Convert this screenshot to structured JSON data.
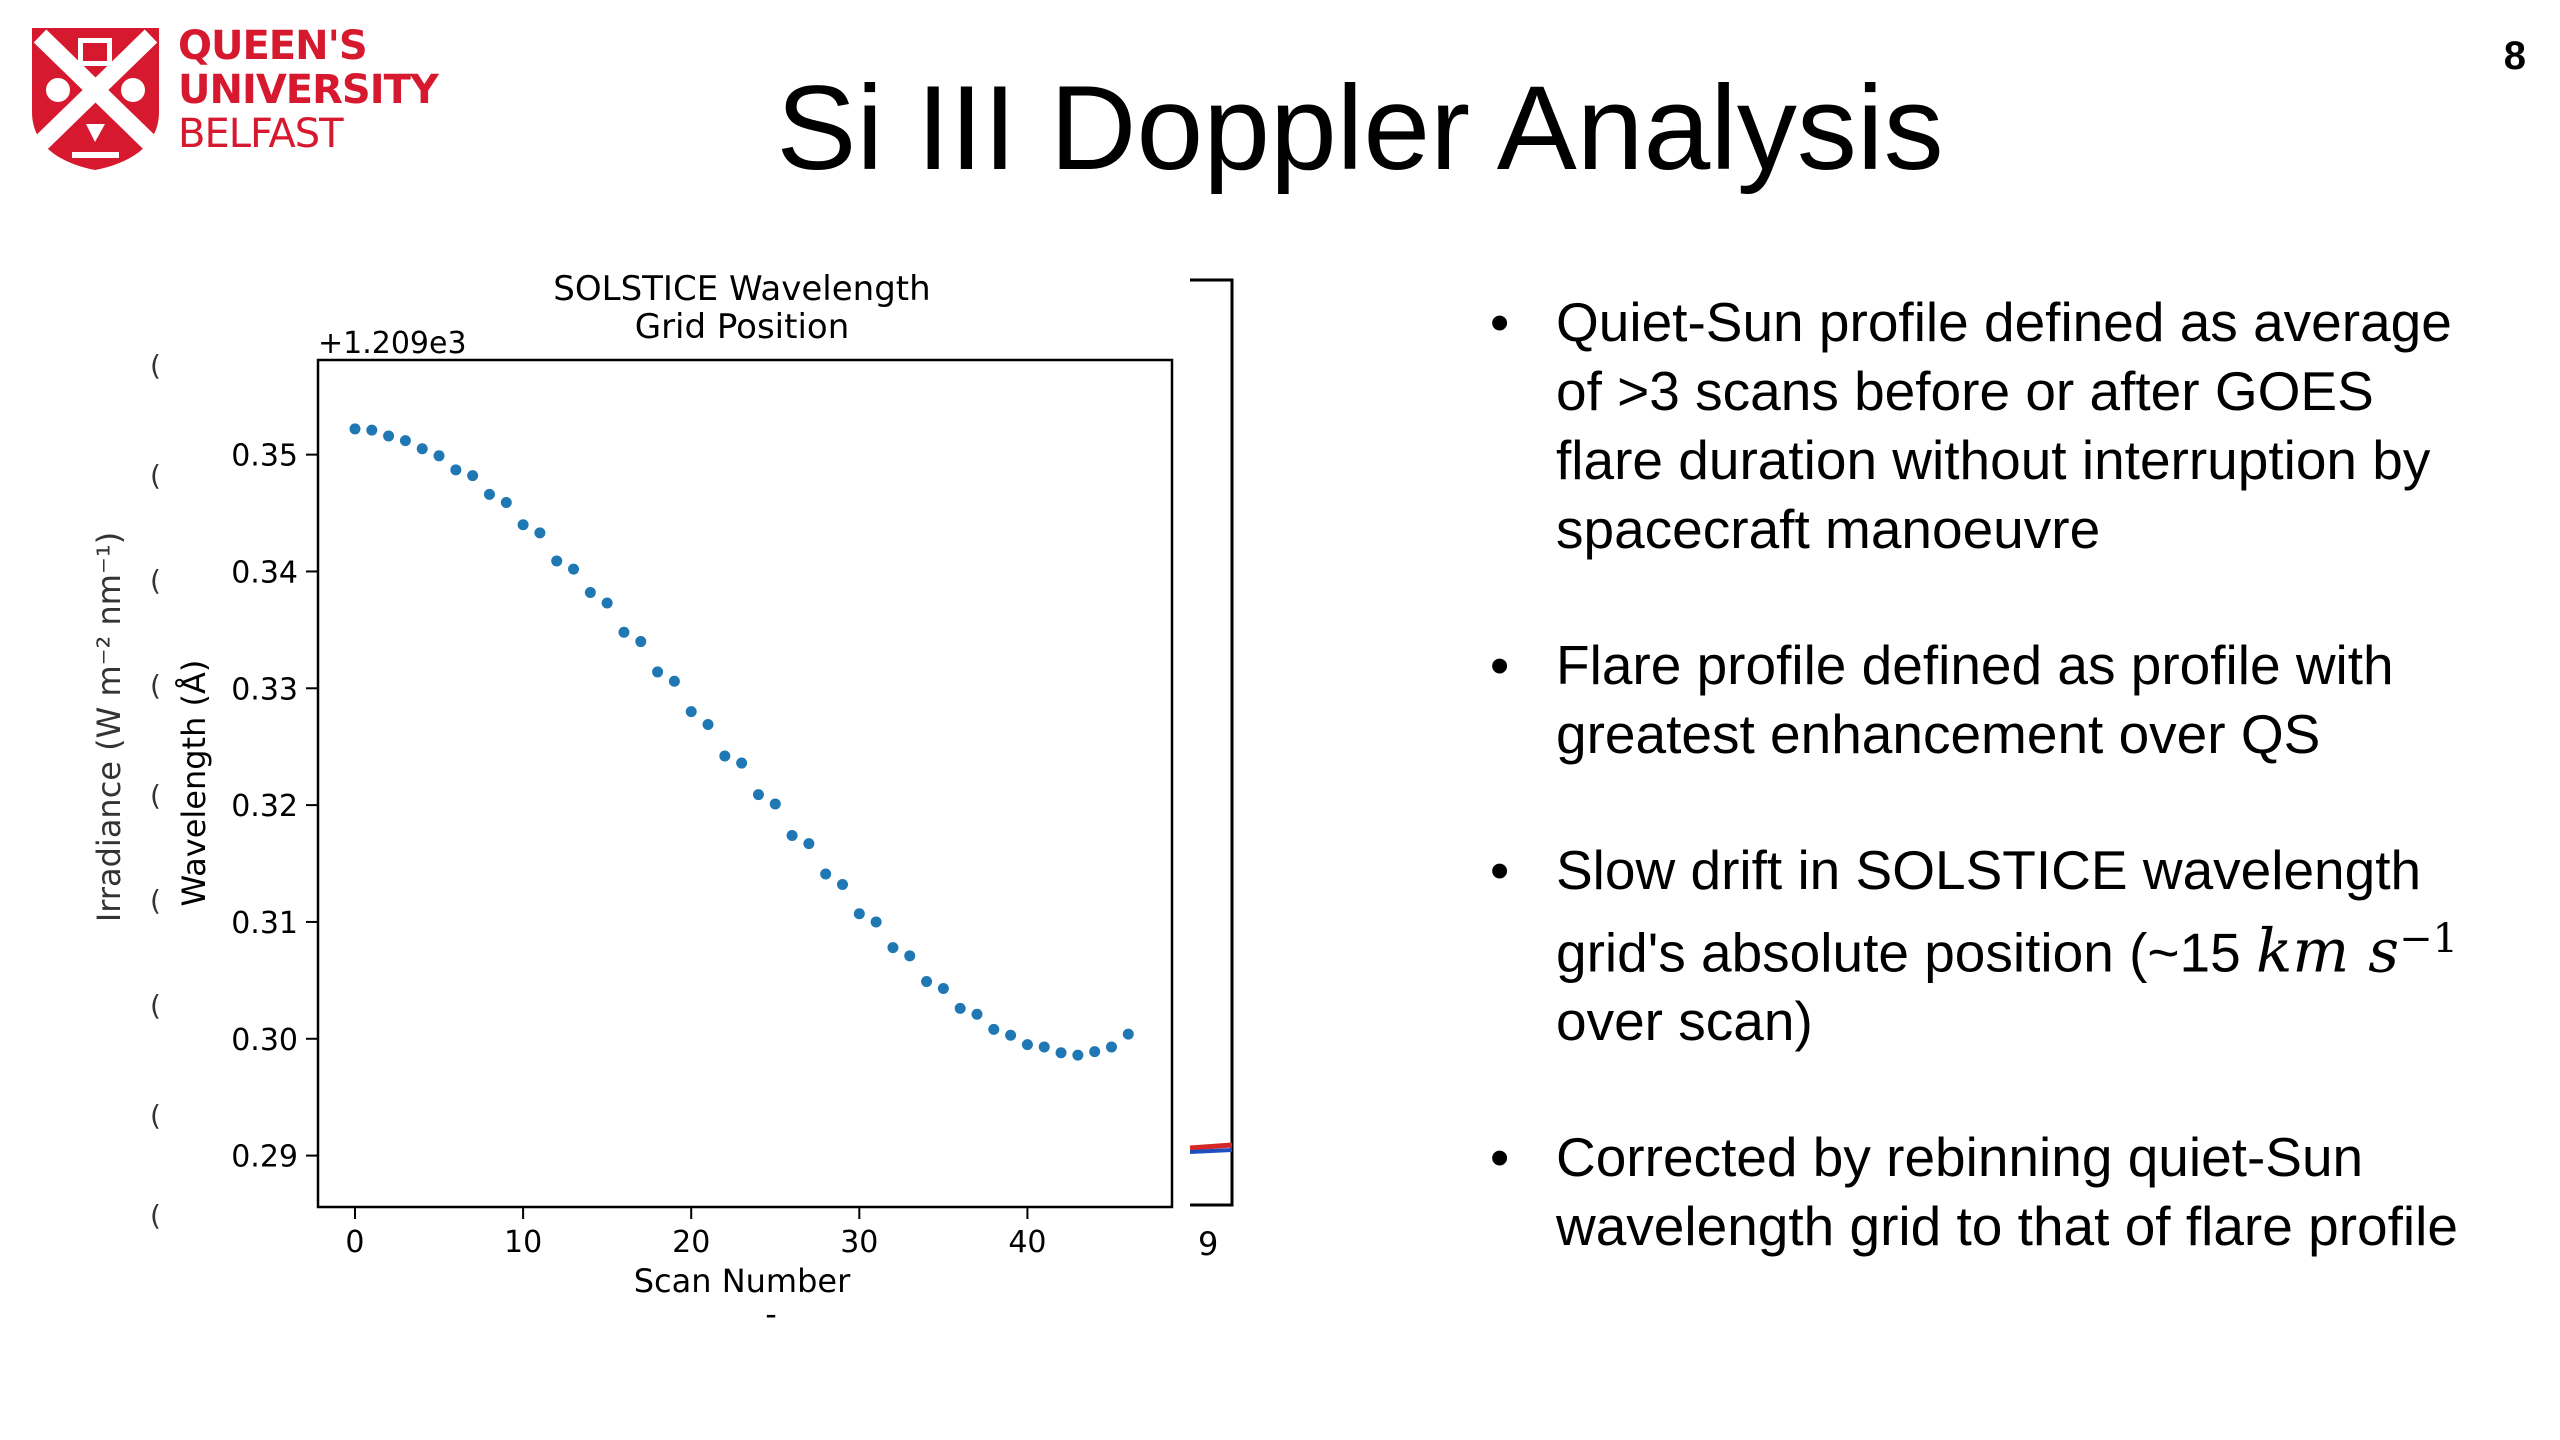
{
  "header": {
    "logo_lines": [
      "QUEEN'S",
      "UNIVERSITY",
      "BELFAST"
    ],
    "slide_number": "8",
    "title": "Si III Doppler Analysis",
    "brand_color": "#d7192f"
  },
  "behind_plot": {
    "ylabel": "Irradiance (W m⁻² nm⁻¹)",
    "x_tick_fragment": "9",
    "xlabel_fragment": "-",
    "line_colors": [
      "#d62728",
      "#1f4fbf"
    ]
  },
  "chart_data": {
    "type": "scatter",
    "title": "SOLSTICE Wavelength\nGrid Position",
    "title_lines": [
      "SOLSTICE Wavelength",
      "Grid Position"
    ],
    "offset_label": "+1.209e3",
    "xlabel": "Scan Number",
    "ylabel": "Wavelength (Å)",
    "xlim": [
      -2.2,
      48.6
    ],
    "ylim": [
      0.2856,
      0.3581
    ],
    "x_ticks": [
      0,
      10,
      20,
      30,
      40
    ],
    "x_tick_labels": [
      "0",
      "10",
      "20",
      "30",
      "40"
    ],
    "y_ticks": [
      0.29,
      0.3,
      0.31,
      0.32,
      0.33,
      0.34,
      0.35
    ],
    "y_tick_labels": [
      "0.29",
      "0.30",
      "0.31",
      "0.32",
      "0.33",
      "0.34",
      "0.35"
    ],
    "marker_color": "#1f77b4",
    "grid": false,
    "series": [
      {
        "x": [
          0,
          1,
          2,
          3,
          4,
          5,
          6,
          7,
          8,
          9,
          10,
          11,
          12,
          13,
          14,
          15,
          16,
          17,
          18,
          19,
          20,
          21,
          22,
          23,
          24,
          25,
          26,
          27,
          28,
          29,
          30,
          31,
          32,
          33,
          34,
          35,
          36,
          37,
          38,
          39,
          40,
          41,
          42,
          43,
          44,
          45,
          46
        ],
        "values": [
          0.3522,
          0.3521,
          0.3516,
          0.3512,
          0.3505,
          0.3499,
          0.3487,
          0.3482,
          0.3466,
          0.3459,
          0.344,
          0.3433,
          0.3409,
          0.3402,
          0.3382,
          0.3373,
          0.3348,
          0.334,
          0.3314,
          0.3306,
          0.328,
          0.3269,
          0.3242,
          0.3236,
          0.3209,
          0.3201,
          0.3174,
          0.3167,
          0.3141,
          0.3132,
          0.3107,
          0.31,
          0.3078,
          0.3071,
          0.3049,
          0.3043,
          0.3026,
          0.3021,
          0.3008,
          0.3003,
          0.2995,
          0.2993,
          0.2988,
          0.2986,
          0.2989,
          0.2993,
          0.3004
        ]
      }
    ]
  },
  "bullets": [
    {
      "lines": [
        "Quiet-Sun profile defined as average",
        "of >3 scans before or after GOES",
        "flare duration without interruption by",
        "spacecraft manoeuvre"
      ]
    },
    {
      "lines": [
        "Flare profile defined as profile with",
        "greatest enhancement over QS"
      ]
    },
    {
      "line1": "Slow drift in SOLSTICE wavelength",
      "line2_pre": "grid's absolute position (~15 ",
      "math": "km s",
      "sup": "−1",
      "line3": "over scan)"
    },
    {
      "lines": [
        "Corrected by rebinning quiet-Sun",
        "wavelength grid to that of flare profile"
      ]
    }
  ]
}
